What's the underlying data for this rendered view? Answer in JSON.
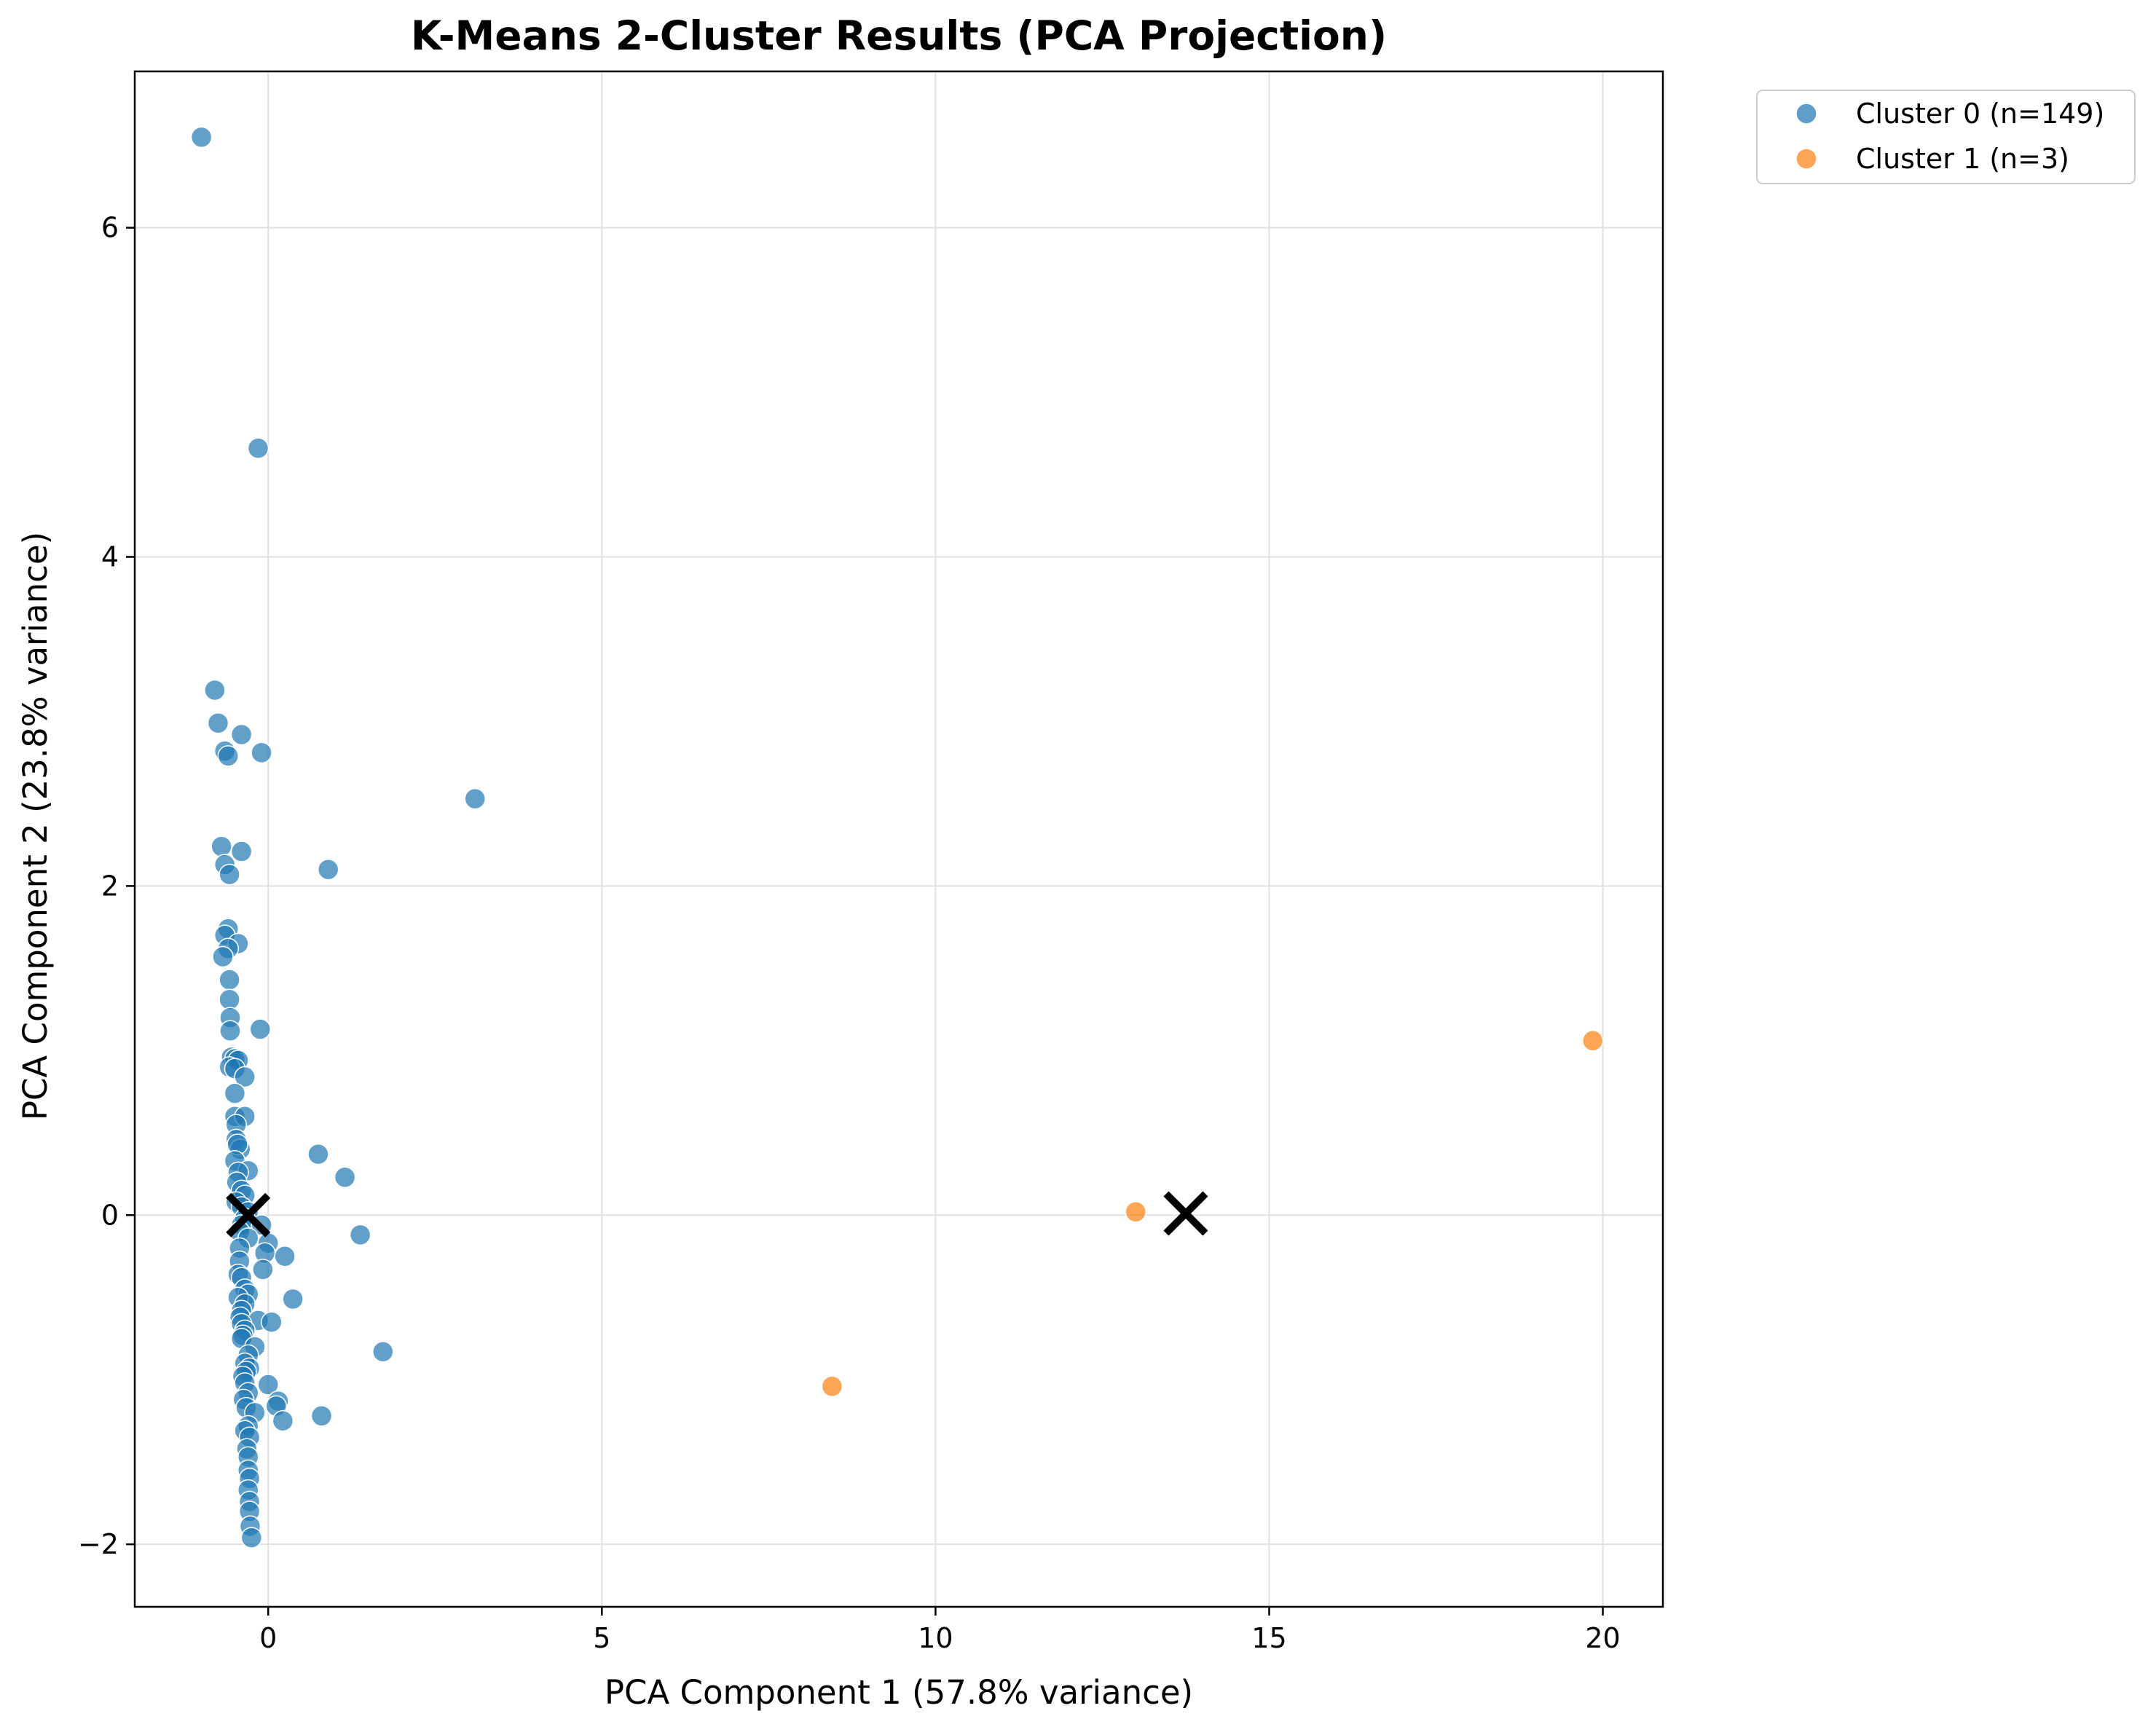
{
  "chart_data": {
    "type": "scatter",
    "title": "K-Means 2-Cluster Results (PCA Projection)",
    "xlabel": "PCA Component 1 (57.8% variance)",
    "ylabel": "PCA Component 2 (23.8% variance)",
    "xlim": [
      -2.0,
      20.9
    ],
    "ylim": [
      -2.38,
      6.95
    ],
    "xticks": [
      0,
      5,
      10,
      15,
      20
    ],
    "yticks": [
      -2,
      0,
      2,
      4,
      6
    ],
    "xtick_labels": [
      "0",
      "5",
      "10",
      "15",
      "20"
    ],
    "ytick_labels": [
      "−2",
      "0",
      "2",
      "4",
      "6"
    ],
    "grid": true,
    "legend_position": "outside top-right",
    "series": [
      {
        "name": "Cluster 0 (n=149)",
        "color": "#1f77b4",
        "points": [
          [
            -1.0,
            6.55
          ],
          [
            -0.15,
            4.66
          ],
          [
            -0.8,
            3.19
          ],
          [
            -0.75,
            2.99
          ],
          [
            -0.4,
            2.92
          ],
          [
            -0.65,
            2.82
          ],
          [
            -0.6,
            2.79
          ],
          [
            -0.1,
            2.81
          ],
          [
            3.1,
            2.53
          ],
          [
            -0.7,
            2.24
          ],
          [
            -0.4,
            2.21
          ],
          [
            -0.65,
            2.13
          ],
          [
            -0.58,
            2.07
          ],
          [
            0.9,
            2.1
          ],
          [
            -0.6,
            1.74
          ],
          [
            -0.65,
            1.7
          ],
          [
            -0.45,
            1.65
          ],
          [
            -0.6,
            1.62
          ],
          [
            -0.68,
            1.57
          ],
          [
            -0.58,
            1.43
          ],
          [
            -0.58,
            1.31
          ],
          [
            -0.57,
            1.2
          ],
          [
            -0.57,
            1.12
          ],
          [
            -0.12,
            1.13
          ],
          [
            -0.55,
            0.96
          ],
          [
            -0.5,
            0.95
          ],
          [
            -0.45,
            0.94
          ],
          [
            -0.58,
            0.9
          ],
          [
            -0.5,
            0.89
          ],
          [
            -0.35,
            0.84
          ],
          [
            -0.5,
            0.74
          ],
          [
            -0.5,
            0.6
          ],
          [
            -0.35,
            0.6
          ],
          [
            -0.48,
            0.55
          ],
          [
            -0.48,
            0.46
          ],
          [
            -0.42,
            0.4
          ],
          [
            -0.46,
            0.43
          ],
          [
            0.75,
            0.37
          ],
          [
            -0.5,
            0.33
          ],
          [
            -0.3,
            0.27
          ],
          [
            -0.45,
            0.26
          ],
          [
            -0.47,
            0.2
          ],
          [
            1.15,
            0.23
          ],
          [
            -0.4,
            0.15
          ],
          [
            -0.35,
            0.12
          ],
          [
            -0.48,
            0.08
          ],
          [
            -0.4,
            0.05
          ],
          [
            -0.3,
            0.02
          ],
          [
            -0.35,
            -0.02
          ],
          [
            -0.4,
            -0.06
          ],
          [
            -0.1,
            -0.06
          ],
          [
            -0.43,
            -0.1
          ],
          [
            -0.3,
            -0.14
          ],
          [
            0.0,
            -0.17
          ],
          [
            1.38,
            -0.12
          ],
          [
            -0.43,
            -0.2
          ],
          [
            -0.05,
            -0.23
          ],
          [
            0.25,
            -0.25
          ],
          [
            -0.43,
            -0.28
          ],
          [
            -0.08,
            -0.33
          ],
          [
            -0.45,
            -0.36
          ],
          [
            -0.4,
            -0.38
          ],
          [
            -0.35,
            -0.45
          ],
          [
            -0.3,
            -0.48
          ],
          [
            -0.45,
            -0.5
          ],
          [
            0.37,
            -0.51
          ],
          [
            -0.35,
            -0.54
          ],
          [
            -0.4,
            -0.58
          ],
          [
            -0.42,
            -0.62
          ],
          [
            -0.15,
            -0.64
          ],
          [
            0.05,
            -0.65
          ],
          [
            -0.4,
            -0.66
          ],
          [
            -0.35,
            -0.7
          ],
          [
            -0.38,
            -0.73
          ],
          [
            -0.4,
            -0.75
          ],
          [
            -0.2,
            -0.8
          ],
          [
            1.72,
            -0.83
          ],
          [
            -0.3,
            -0.85
          ],
          [
            -0.35,
            -0.9
          ],
          [
            -0.28,
            -0.93
          ],
          [
            -0.33,
            -0.95
          ],
          [
            -0.38,
            -0.98
          ],
          [
            -0.35,
            -1.02
          ],
          [
            0.0,
            -1.03
          ],
          [
            -0.3,
            -1.08
          ],
          [
            -0.37,
            -1.12
          ],
          [
            0.15,
            -1.13
          ],
          [
            -0.33,
            -1.17
          ],
          [
            0.12,
            -1.16
          ],
          [
            -0.2,
            -1.2
          ],
          [
            0.8,
            -1.22
          ],
          [
            0.22,
            -1.25
          ],
          [
            -0.3,
            -1.28
          ],
          [
            -0.35,
            -1.31
          ],
          [
            -0.28,
            -1.35
          ],
          [
            -0.32,
            -1.42
          ],
          [
            -0.3,
            -1.47
          ],
          [
            -0.3,
            -1.55
          ],
          [
            -0.28,
            -1.6
          ],
          [
            -0.3,
            -1.67
          ],
          [
            -0.28,
            -1.74
          ],
          [
            -0.28,
            -1.8
          ],
          [
            -0.27,
            -1.89
          ],
          [
            -0.25,
            -1.96
          ]
        ]
      },
      {
        "name": "Cluster 1 (n=3)",
        "color": "#ff7f0e",
        "points": [
          [
            8.45,
            -1.04
          ],
          [
            13.0,
            0.02
          ],
          [
            19.85,
            1.06
          ]
        ]
      }
    ],
    "centroids": [
      [
        -0.3,
        0.0
      ],
      [
        13.75,
        0.01
      ]
    ],
    "centroid_color": "#000000"
  }
}
